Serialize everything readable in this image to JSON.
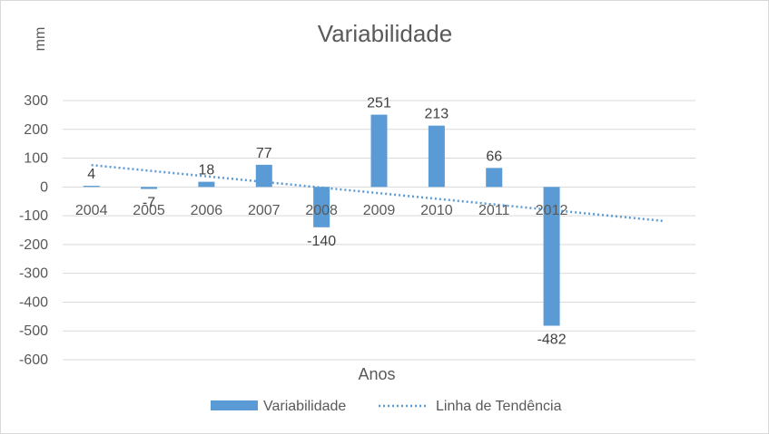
{
  "chart_data": {
    "type": "bar",
    "title": "Variabilidade",
    "xlabel": "Anos",
    "ylabel": "mm",
    "categories": [
      "2004",
      "2005",
      "2006",
      "2007",
      "2008",
      "2009",
      "2010",
      "2011",
      "2012"
    ],
    "series": [
      {
        "name": "Variabilidade",
        "values": [
          4,
          -7,
          18,
          77,
          -140,
          251,
          213,
          66,
          -482
        ],
        "data_labels": [
          "4",
          "-7",
          "18",
          "77",
          "-140",
          "251",
          "213",
          "66",
          "-482"
        ],
        "color": "#5b9bd5"
      }
    ],
    "trendline": {
      "name": "Linha de Tendência",
      "type": "linear",
      "start_value": 76,
      "end_value": -118,
      "color": "#5b9bd5",
      "style": "dotted"
    },
    "ylim": [
      -600,
      300
    ],
    "yticks": [
      300,
      200,
      100,
      0,
      -100,
      -200,
      -300,
      -400,
      -500,
      -600
    ],
    "ytick_labels": [
      "300",
      "200",
      "100",
      "0",
      "-100",
      "-200",
      "-300",
      "-400",
      "-500",
      "-600"
    ],
    "grid": true,
    "legend_position": "bottom"
  }
}
